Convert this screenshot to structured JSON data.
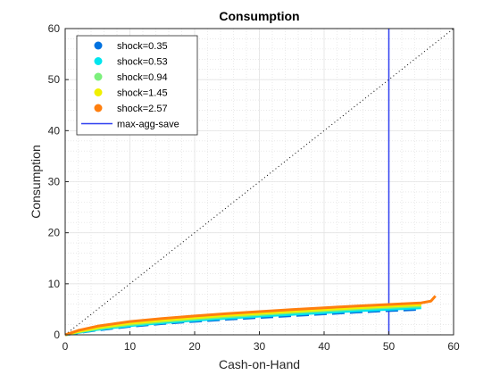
{
  "chart_data": {
    "type": "line",
    "title": "Consumption",
    "xlabel": "Cash-on-Hand",
    "ylabel": "Consumption",
    "xlim": [
      0,
      60
    ],
    "ylim": [
      0,
      60
    ],
    "xticks": [
      0,
      10,
      20,
      30,
      40,
      50,
      60
    ],
    "yticks": [
      0,
      10,
      20,
      30,
      40,
      50,
      60
    ],
    "minor_grid": true,
    "major_grid": true,
    "legend_position": "top-left",
    "series": [
      {
        "name": "shock=0.35",
        "color": "#0072e0",
        "dashed": true,
        "x": [
          0,
          2,
          5,
          10,
          15,
          20,
          25,
          30,
          35,
          40,
          45,
          50,
          55
        ],
        "y": [
          0,
          0.4,
          0.95,
          1.65,
          2.2,
          2.65,
          3.05,
          3.4,
          3.75,
          4.1,
          4.45,
          4.75,
          5.0
        ]
      },
      {
        "name": "shock=0.53",
        "color": "#00e5ee",
        "dashed": false,
        "x": [
          0,
          2,
          5,
          10,
          15,
          20,
          25,
          30,
          35,
          40,
          45,
          50,
          55
        ],
        "y": [
          0,
          0.45,
          1.05,
          1.8,
          2.35,
          2.85,
          3.25,
          3.65,
          4.0,
          4.35,
          4.7,
          5.0,
          5.3
        ]
      },
      {
        "name": "shock=0.94",
        "color": "#7cf07c",
        "dashed": false,
        "x": [
          0,
          2,
          5,
          10,
          15,
          20,
          25,
          30,
          35,
          40,
          45,
          50,
          55
        ],
        "y": [
          0,
          0.55,
          1.2,
          2.0,
          2.6,
          3.1,
          3.55,
          3.95,
          4.35,
          4.7,
          5.05,
          5.35,
          5.65
        ]
      },
      {
        "name": "shock=1.45",
        "color": "#f0f000",
        "dashed": false,
        "x": [
          0,
          2,
          5,
          10,
          15,
          20,
          25,
          30,
          35,
          40,
          45,
          50,
          55
        ],
        "y": [
          0,
          0.65,
          1.4,
          2.25,
          2.85,
          3.35,
          3.8,
          4.2,
          4.6,
          4.95,
          5.3,
          5.6,
          5.9
        ]
      },
      {
        "name": "shock=2.57",
        "color": "#ff7f0e",
        "dashed": false,
        "x": [
          0,
          2,
          5,
          10,
          15,
          20,
          25,
          30,
          35,
          40,
          45,
          50,
          55,
          56.5,
          57.2
        ],
        "y": [
          0,
          0.85,
          1.7,
          2.6,
          3.2,
          3.7,
          4.15,
          4.55,
          4.95,
          5.3,
          5.65,
          5.95,
          6.25,
          6.6,
          7.6
        ]
      }
    ],
    "reference_lines": [
      {
        "type": "vertical",
        "name": "max-agg-save",
        "x": 50,
        "color": "#2f3ff0"
      },
      {
        "type": "diagonal",
        "name": "",
        "from": [
          0,
          0
        ],
        "to": [
          60,
          60
        ],
        "color": "#000000",
        "dotted": true
      }
    ]
  }
}
